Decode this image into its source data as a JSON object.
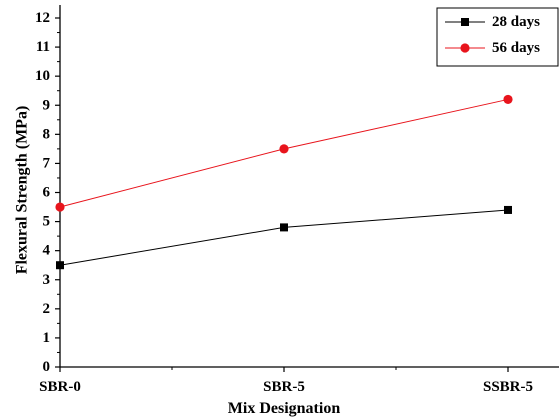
{
  "chart_data": {
    "type": "line",
    "categories": [
      "SBR-0",
      "SBR-5",
      "SSBR-5"
    ],
    "series": [
      {
        "name": "28 days",
        "values": [
          3.5,
          4.8,
          5.4
        ],
        "color": "#000000",
        "marker": "square"
      },
      {
        "name": "56 days",
        "values": [
          5.5,
          7.5,
          9.2
        ],
        "color": "#e8141c",
        "marker": "circle"
      }
    ],
    "xlabel": "Mix Designation",
    "ylabel": "Flexural Strength (MPa)",
    "ylim": [
      0,
      12
    ],
    "yticks": [
      0,
      1,
      2,
      3,
      4,
      5,
      6,
      7,
      8,
      9,
      10,
      11,
      12
    ],
    "grid": false,
    "legend": "top-right"
  }
}
